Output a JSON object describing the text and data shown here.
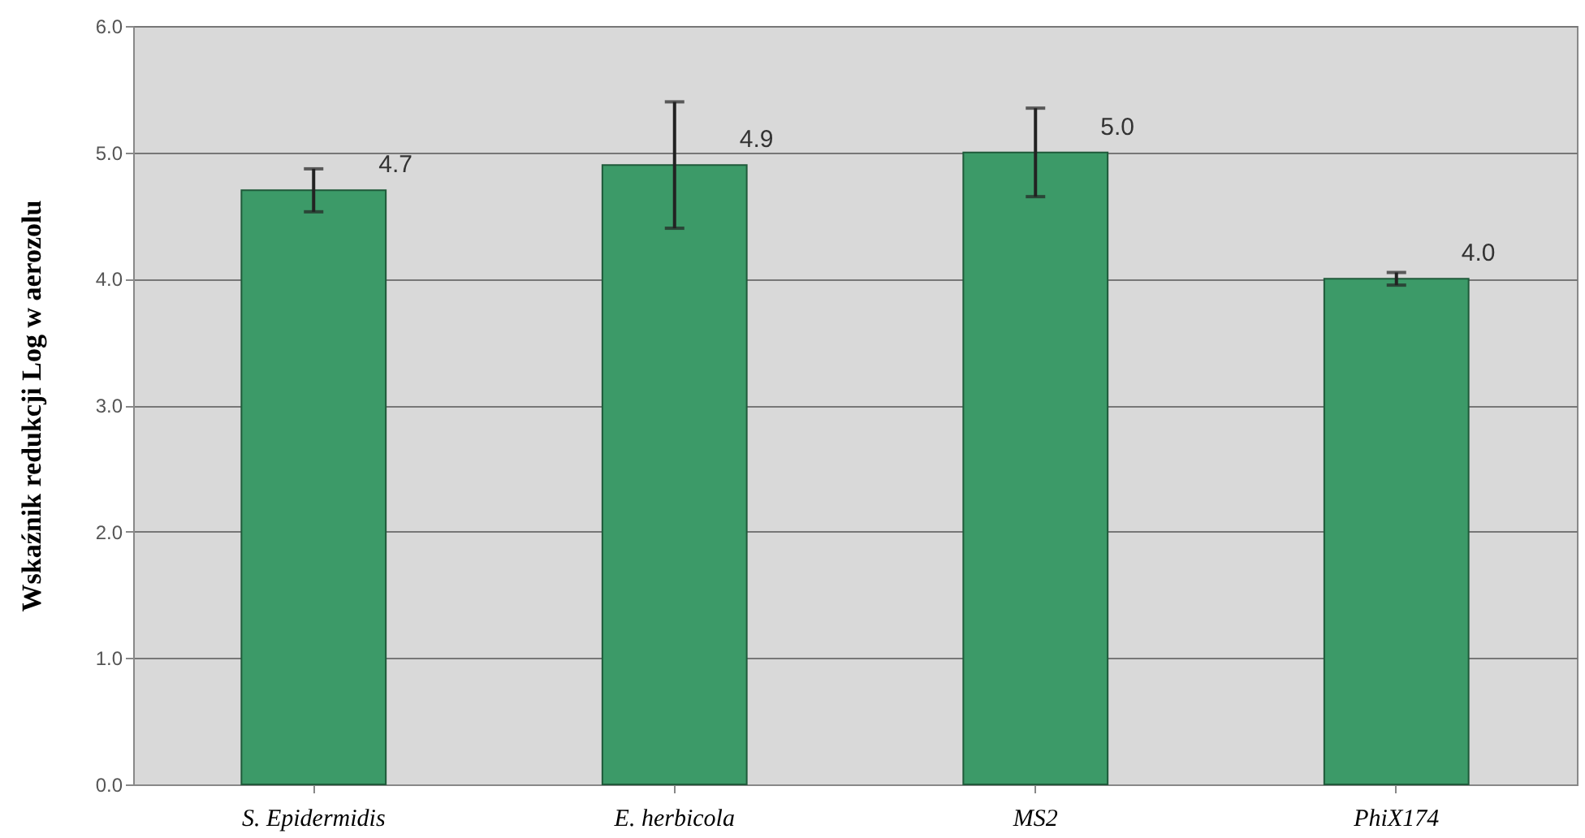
{
  "chart_data": {
    "type": "bar",
    "ylabel": "Wskaźnik redukcji Log w aerozolu",
    "categories": [
      "S. Epidermidis",
      "E. herbicola",
      "MS2",
      "PhiX174"
    ],
    "values": [
      4.7,
      4.9,
      5.0,
      4.0
    ],
    "errors": [
      0.17,
      0.5,
      0.35,
      0.05
    ],
    "value_labels": [
      "4.7",
      "4.9",
      "5.0",
      "4.0"
    ],
    "color": "#3c9a68",
    "ylim": [
      0,
      6
    ],
    "yticks": [
      {
        "value": 0,
        "label": "0.0"
      },
      {
        "value": 1,
        "label": "1.0"
      },
      {
        "value": 2,
        "label": "2.0"
      },
      {
        "value": 3,
        "label": "3.0"
      },
      {
        "value": 4,
        "label": "4.0"
      },
      {
        "value": 5,
        "label": "5.0"
      },
      {
        "value": 6,
        "label": "6.0"
      }
    ],
    "grid": "y"
  }
}
